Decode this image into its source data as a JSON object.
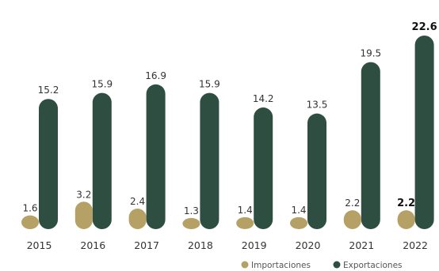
{
  "chart_data": {
    "type": "bar",
    "categories": [
      "2015",
      "2016",
      "2017",
      "2018",
      "2019",
      "2020",
      "2021",
      "2022"
    ],
    "series": [
      {
        "name": "Importaciones",
        "values": [
          1.6,
          3.2,
          2.4,
          1.3,
          1.4,
          1.4,
          2.2,
          2.2
        ],
        "labels": [
          "1.6",
          "3.2",
          "2.4",
          "1.3",
          "1.4",
          "1.4",
          "2.2",
          "2.2"
        ],
        "color": "#b5a166"
      },
      {
        "name": "Exportaciones",
        "values": [
          15.2,
          15.9,
          16.9,
          15.9,
          14.2,
          13.5,
          19.5,
          22.6
        ],
        "labels": [
          "15.2",
          "15.9",
          "16.9",
          "15.9",
          "14.2",
          "13.5",
          "19.5",
          "22.6"
        ],
        "color": "#2d4e40"
      }
    ],
    "highlighted_category": "2022",
    "ylim": [
      0,
      22.6
    ],
    "grid": false,
    "legend_position": "bottom-right"
  }
}
